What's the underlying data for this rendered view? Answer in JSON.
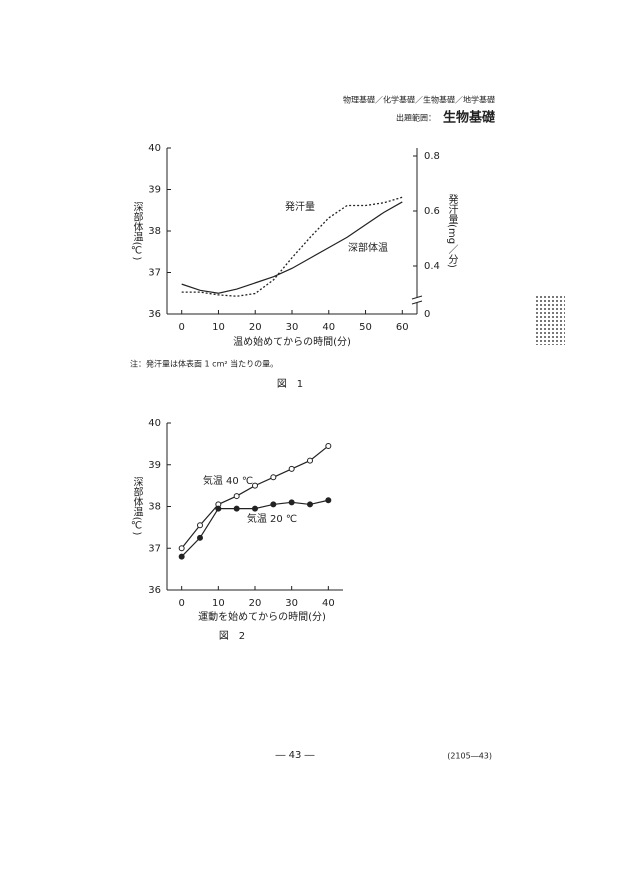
{
  "header": {
    "subjects": "物理基礎／化学基礎／生物基礎／地学基礎",
    "scope_label": "出題範囲：",
    "scope": "生物基礎"
  },
  "chart_data": [
    {
      "type": "line",
      "x_label": "温め始めてからの時間(分)",
      "y_label": "深部体温(℃)",
      "y2_label": "発汗量(mg／分)",
      "x": [
        0,
        5,
        10,
        15,
        20,
        25,
        30,
        35,
        40,
        45,
        50,
        55,
        60
      ],
      "series": [
        {
          "name": "深部体温",
          "color": "#222222",
          "style": "solid",
          "values": [
            36.72,
            36.57,
            36.5,
            36.6,
            36.75,
            36.9,
            37.1,
            37.35,
            37.6,
            37.85,
            38.15,
            38.45,
            38.7
          ]
        },
        {
          "name": "発汗量",
          "color": "#222222",
          "style": "dotted",
          "axis": "y2",
          "values": [
            0.305,
            0.305,
            0.295,
            0.29,
            0.3,
            0.35,
            0.43,
            0.505,
            0.575,
            0.62,
            0.62,
            0.63,
            0.65
          ]
        }
      ],
      "xlim": [
        -4,
        64
      ],
      "xticks": [
        0,
        10,
        20,
        30,
        40,
        50,
        60
      ],
      "ylim": [
        36,
        40
      ],
      "yticks": [
        36,
        37,
        38,
        39,
        40
      ],
      "y2lim": [
        0,
        0.8
      ],
      "y2ticks": [
        0,
        0.4,
        0.6,
        0.8
      ],
      "y2_break": true,
      "note": "注：発汗量は体表面 1 cm² 当たりの量。",
      "caption": "図　1"
    },
    {
      "type": "line",
      "x_label": "運動を始めてからの時間(分)",
      "y_label": "深部体温(℃)",
      "x": [
        0,
        5,
        10,
        15,
        20,
        25,
        30,
        35,
        40
      ],
      "series": [
        {
          "name": "気温 40 ℃",
          "color": "#222222",
          "marker": "open",
          "values": [
            37.0,
            37.55,
            38.05,
            38.25,
            38.5,
            38.7,
            38.9,
            39.1,
            39.45
          ]
        },
        {
          "name": "気温 20 ℃",
          "color": "#222222",
          "marker": "filled",
          "values": [
            36.8,
            37.25,
            37.95,
            37.95,
            37.95,
            38.05,
            38.1,
            38.05,
            38.15
          ]
        }
      ],
      "xlim": [
        -4,
        44
      ],
      "xticks": [
        0,
        10,
        20,
        30,
        40
      ],
      "ylim": [
        36,
        40
      ],
      "yticks": [
        36,
        37,
        38,
        39,
        40
      ],
      "caption": "図　2"
    }
  ],
  "footer": {
    "page": "― 43 ―",
    "code": "(2105―43)"
  }
}
